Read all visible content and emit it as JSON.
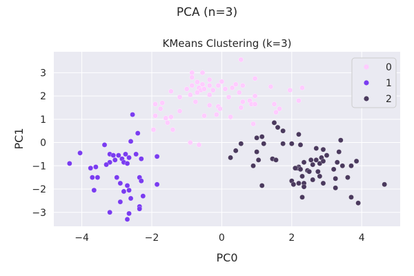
{
  "figure": {
    "suptitle": "PCA (n=3)"
  },
  "chart_data": {
    "type": "scatter",
    "title": "KMeans Clustering (k=3)",
    "xlabel": "PC0",
    "ylabel": "PC1",
    "xlim": [
      -4.8,
      5.1
    ],
    "ylim": [
      -3.6,
      3.9
    ],
    "xticks": [
      -4,
      -2,
      0,
      2,
      4
    ],
    "xtick_labels": [
      "−4",
      "−2",
      "0",
      "2",
      "4"
    ],
    "yticks": [
      -3,
      -2,
      -1,
      0,
      1,
      2,
      3
    ],
    "ytick_labels": [
      "−3",
      "−2",
      "−1",
      "0",
      "1",
      "2",
      "3"
    ],
    "grid": true,
    "legend_position": "top-right",
    "series": [
      {
        "name": "0",
        "color": "#ffccff",
        "points": [
          [
            0.55,
            3.56
          ],
          [
            -0.85,
            3.0
          ],
          [
            -0.55,
            3.0
          ],
          [
            -0.85,
            2.8
          ],
          [
            -0.35,
            2.7
          ],
          [
            0.95,
            2.75
          ],
          [
            -0.7,
            2.6
          ],
          [
            0.0,
            2.62
          ],
          [
            0.4,
            2.5
          ],
          [
            -0.1,
            2.45
          ],
          [
            -0.55,
            2.5
          ],
          [
            -0.35,
            2.45
          ],
          [
            -1.0,
            2.3
          ],
          [
            -0.65,
            2.35
          ],
          [
            -0.85,
            2.45
          ],
          [
            -0.6,
            2.25
          ],
          [
            -0.5,
            2.3
          ],
          [
            -0.25,
            2.25
          ],
          [
            0.3,
            2.35
          ],
          [
            0.6,
            2.45
          ],
          [
            0.1,
            2.3
          ],
          [
            1.4,
            2.4
          ],
          [
            2.3,
            2.35
          ],
          [
            1.95,
            2.25
          ],
          [
            -1.45,
            2.2
          ],
          [
            -0.9,
            2.05
          ],
          [
            -0.7,
            2.15
          ],
          [
            -0.35,
            2.05
          ],
          [
            0.2,
            1.95
          ],
          [
            0.5,
            2.15
          ],
          [
            0.95,
            2.0
          ],
          [
            -1.2,
            1.95
          ],
          [
            0.6,
            1.75
          ],
          [
            0.8,
            1.8
          ],
          [
            0.85,
            1.65
          ],
          [
            -1.7,
            1.7
          ],
          [
            -1.9,
            1.65
          ],
          [
            -0.75,
            1.75
          ],
          [
            -0.35,
            1.6
          ],
          [
            -0.1,
            1.55
          ],
          [
            0.55,
            1.5
          ],
          [
            0.95,
            1.65
          ],
          [
            1.5,
            1.65
          ],
          [
            1.65,
            1.45
          ],
          [
            2.2,
            1.8
          ],
          [
            1.55,
            1.3
          ],
          [
            -1.75,
            1.45
          ],
          [
            -1.2,
            1.35
          ],
          [
            -0.05,
            1.45
          ],
          [
            -0.15,
            1.2
          ],
          [
            0.25,
            1.1
          ],
          [
            -0.5,
            1.15
          ],
          [
            -1.45,
            1.1
          ],
          [
            -1.9,
            1.15
          ],
          [
            -1.6,
            1.05
          ],
          [
            -1.55,
            0.85
          ],
          [
            -1.4,
            0.55
          ],
          [
            -1.95,
            0.55
          ],
          [
            0.9,
            0.8
          ],
          [
            -0.9,
            0.0
          ],
          [
            -0.65,
            -0.1
          ]
        ]
      },
      {
        "name": "1",
        "color": "#7a3cf0",
        "points": [
          [
            -2.55,
            1.2
          ],
          [
            -2.4,
            0.4
          ],
          [
            -2.6,
            0.05
          ],
          [
            -3.35,
            -0.1
          ],
          [
            -4.05,
            -0.45
          ],
          [
            -3.2,
            -0.5
          ],
          [
            -3.1,
            -0.55
          ],
          [
            -2.95,
            -0.55
          ],
          [
            -2.75,
            -0.5
          ],
          [
            -2.45,
            -0.5
          ],
          [
            -2.65,
            -0.65
          ],
          [
            -2.3,
            -0.7
          ],
          [
            -2.85,
            -0.7
          ],
          [
            -3.05,
            -0.75
          ],
          [
            -3.2,
            -0.85
          ],
          [
            -2.8,
            -0.85
          ],
          [
            -2.7,
            -0.9
          ],
          [
            -3.3,
            -0.95
          ],
          [
            -1.85,
            -0.6
          ],
          [
            -4.35,
            -0.9
          ],
          [
            -3.75,
            -1.1
          ],
          [
            -3.6,
            -1.05
          ],
          [
            -3.7,
            -1.5
          ],
          [
            -3.55,
            -1.5
          ],
          [
            -3.0,
            -1.5
          ],
          [
            -2.35,
            -1.5
          ],
          [
            -2.3,
            -1.65
          ],
          [
            -2.9,
            -1.75
          ],
          [
            -2.7,
            -1.85
          ],
          [
            -1.85,
            -1.8
          ],
          [
            -3.65,
            -2.05
          ],
          [
            -2.65,
            -2.05
          ],
          [
            -2.8,
            -2.1
          ],
          [
            -2.6,
            -2.4
          ],
          [
            -2.25,
            -2.3
          ],
          [
            -2.9,
            -2.55
          ],
          [
            -2.35,
            -2.75
          ],
          [
            -2.35,
            -2.85
          ],
          [
            -3.2,
            -3.0
          ],
          [
            -2.65,
            -3.05
          ],
          [
            -2.7,
            -3.3
          ]
        ]
      },
      {
        "name": "2",
        "color": "#4b3a5e",
        "points": [
          [
            1.5,
            0.85
          ],
          [
            1.6,
            0.65
          ],
          [
            1.75,
            0.5
          ],
          [
            2.2,
            0.35
          ],
          [
            3.4,
            0.1
          ],
          [
            1.0,
            0.2
          ],
          [
            1.15,
            0.25
          ],
          [
            0.55,
            -0.05
          ],
          [
            1.2,
            -0.05
          ],
          [
            1.75,
            -0.05
          ],
          [
            2.0,
            -0.05
          ],
          [
            2.25,
            -0.1
          ],
          [
            2.7,
            -0.25
          ],
          [
            2.9,
            -0.3
          ],
          [
            3.35,
            -0.4
          ],
          [
            3.0,
            -0.55
          ],
          [
            2.85,
            -0.65
          ],
          [
            2.7,
            -0.75
          ],
          [
            2.55,
            -0.75
          ],
          [
            2.35,
            -0.85
          ],
          [
            2.6,
            -0.95
          ],
          [
            2.8,
            -0.9
          ],
          [
            2.2,
            -1.05
          ],
          [
            2.15,
            -1.1
          ],
          [
            2.25,
            -1.15
          ],
          [
            2.1,
            -1.1
          ],
          [
            2.45,
            -1.2
          ],
          [
            2.3,
            -1.45
          ],
          [
            2.5,
            -1.25
          ],
          [
            2.75,
            -1.25
          ],
          [
            3.2,
            -1.15
          ],
          [
            3.7,
            -1.0
          ],
          [
            3.85,
            -0.8
          ],
          [
            3.3,
            -0.85
          ],
          [
            3.45,
            -1.0
          ],
          [
            2.9,
            -0.8
          ],
          [
            1.45,
            -0.7
          ],
          [
            1.55,
            -0.75
          ],
          [
            0.4,
            -0.35
          ],
          [
            1.0,
            -0.4
          ],
          [
            0.25,
            -0.65
          ],
          [
            1.05,
            -0.75
          ],
          [
            0.9,
            -1.0
          ],
          [
            2.0,
            -1.65
          ],
          [
            2.05,
            -1.8
          ],
          [
            2.2,
            -1.75
          ],
          [
            2.35,
            -1.75
          ],
          [
            2.8,
            -1.45
          ],
          [
            2.6,
            -1.6
          ],
          [
            2.9,
            -1.75
          ],
          [
            3.25,
            -1.55
          ],
          [
            3.6,
            -1.5
          ],
          [
            1.15,
            -1.85
          ],
          [
            2.35,
            -1.9
          ],
          [
            3.25,
            -1.95
          ],
          [
            4.65,
            -1.8
          ],
          [
            2.3,
            -2.35
          ],
          [
            3.7,
            -2.35
          ],
          [
            3.9,
            -2.6
          ]
        ]
      }
    ]
  }
}
